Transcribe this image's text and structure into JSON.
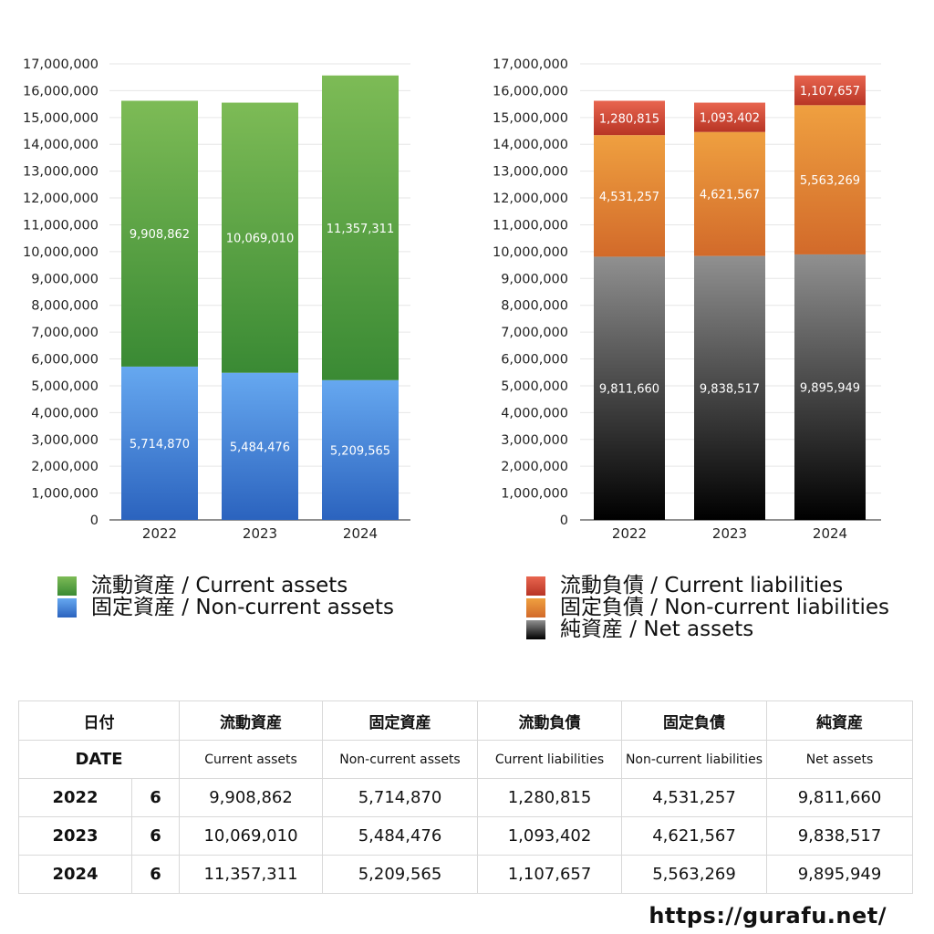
{
  "charts": {
    "left": {
      "title": "",
      "categories": [
        "2022",
        "2023",
        "2024"
      ],
      "series": [
        {
          "name": "固定資産 / Non-current assets",
          "key": "noncurrent_assets",
          "values": [
            5714870,
            5484476,
            5209565
          ],
          "labels": [
            "5,714,870",
            "5,484,476",
            "5,209,565"
          ]
        },
        {
          "name": "流動資産 / Current assets",
          "key": "current_assets",
          "values": [
            9908862,
            10069010,
            11357311
          ],
          "labels": [
            "9,908,862",
            "10,069,010",
            "11,357,311"
          ]
        }
      ]
    },
    "right": {
      "title": "",
      "categories": [
        "2022",
        "2023",
        "2024"
      ],
      "series": [
        {
          "name": "純資産 / Net assets",
          "key": "net_assets",
          "values": [
            9811660,
            9838517,
            9895949
          ],
          "labels": [
            "9,811,660",
            "9,838,517",
            "9,895,949"
          ]
        },
        {
          "name": "固定負債 / Non-current liabilities",
          "key": "noncurrent_liabilities",
          "values": [
            4531257,
            4621567,
            5563269
          ],
          "labels": [
            "4,531,257",
            "4,621,567",
            "5,563,269"
          ]
        },
        {
          "name": "流動負債 / Current liabilities",
          "key": "current_liabilities",
          "values": [
            1280815,
            1093402,
            1107657
          ],
          "labels": [
            "1,280,815",
            "1,093,402",
            "1,107,657"
          ]
        }
      ]
    },
    "y_ticks": [
      "0",
      "1,000,000",
      "2,000,000",
      "3,000,000",
      "4,000,000",
      "5,000,000",
      "6,000,000",
      "7,000,000",
      "8,000,000",
      "9,000,000",
      "10,000,000",
      "11,000,000",
      "12,000,000",
      "13,000,000",
      "14,000,000",
      "15,000,000",
      "16,000,000",
      "17,000,000"
    ],
    "ylim": [
      0,
      17000000
    ],
    "colors": {
      "current_assets": [
        "#7dbb56",
        "#3a8a34"
      ],
      "noncurrent_assets": [
        "#66a8f0",
        "#2b63be"
      ],
      "current_liabilities": [
        "#e8654f",
        "#b83525"
      ],
      "noncurrent_liabilities": [
        "#efa040",
        "#d26a2a"
      ],
      "net_assets": [
        "#909090",
        "#000000"
      ]
    }
  },
  "chart_data": [
    {
      "type": "bar",
      "stacked": true,
      "categories": [
        "2022",
        "2023",
        "2024"
      ],
      "series": [
        {
          "name": "流動資産 / Current assets",
          "values": [
            9908862,
            10069010,
            11357311
          ]
        },
        {
          "name": "固定資産 / Non-current assets",
          "values": [
            5714870,
            5484476,
            5209565
          ]
        }
      ],
      "ylim": [
        0,
        17000000
      ],
      "grid": true,
      "legend": "bottom"
    },
    {
      "type": "bar",
      "stacked": true,
      "categories": [
        "2022",
        "2023",
        "2024"
      ],
      "series": [
        {
          "name": "流動負債 / Current liabilities",
          "values": [
            1280815,
            1093402,
            1107657
          ]
        },
        {
          "name": "固定負債 / Non-current liabilities",
          "values": [
            4531257,
            4621567,
            5563269
          ]
        },
        {
          "name": "純資産 / Net assets",
          "values": [
            9811660,
            9838517,
            9895949
          ]
        }
      ],
      "ylim": [
        0,
        17000000
      ],
      "grid": true,
      "legend": "bottom"
    }
  ],
  "legend_left": {
    "current_assets": "流動資産 / Current assets",
    "noncurrent_assets": "固定資産 / Non-current assets"
  },
  "legend_right": {
    "current_liabilities": "流動負債 / Current liabilities",
    "noncurrent_liabilities": "固定負債 / Non-current liabilities",
    "net_assets": "純資産 / Net assets"
  },
  "table": {
    "header_jp": {
      "date": "日付",
      "ca": "流動資産",
      "nca": "固定資産",
      "cl": "流動負債",
      "ncl": "固定負債",
      "na": "純資産"
    },
    "header_en": {
      "date": "DATE",
      "ca": "Current assets",
      "nca": "Non-current assets",
      "cl": "Current liabilities",
      "ncl": "Non-current liabilities",
      "na": "Net assets"
    },
    "rows": [
      {
        "year": "2022",
        "month": "6",
        "ca": "9,908,862",
        "nca": "5,714,870",
        "cl": "1,280,815",
        "ncl": "4,531,257",
        "na": "9,811,660"
      },
      {
        "year": "2023",
        "month": "6",
        "ca": "10,069,010",
        "nca": "5,484,476",
        "cl": "1,093,402",
        "ncl": "4,621,567",
        "na": "9,838,517"
      },
      {
        "year": "2024",
        "month": "6",
        "ca": "11,357,311",
        "nca": "5,209,565",
        "cl": "1,107,657",
        "ncl": "5,563,269",
        "na": "9,895,949"
      }
    ]
  },
  "footer": {
    "url": "https://gurafu.net/"
  }
}
